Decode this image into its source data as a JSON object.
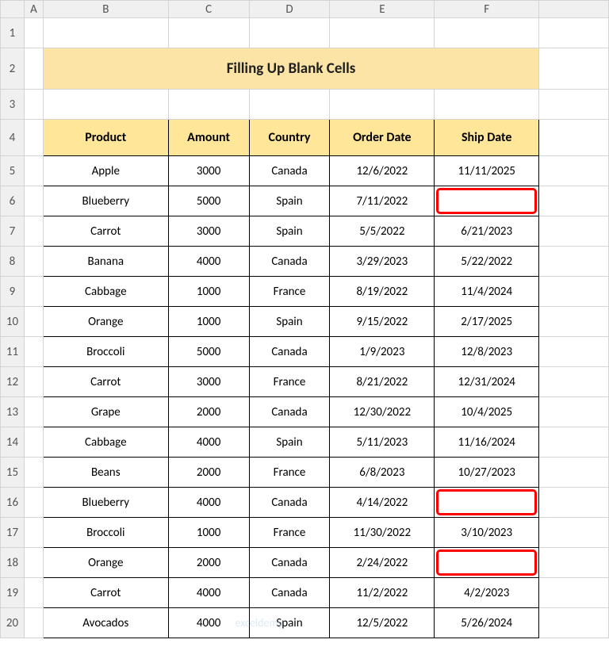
{
  "columns": [
    "A",
    "B",
    "C",
    "D",
    "E",
    "F"
  ],
  "rowCount": 20,
  "title": "Filling Up Blank Cells",
  "headers": [
    "Product",
    "Amount",
    "Country",
    "Order Date",
    "Ship Date"
  ],
  "rows": [
    {
      "product": "Apple",
      "amount": "3000",
      "country": "Canada",
      "order": "12/6/2022",
      "ship": "11/11/2025",
      "highlight": false
    },
    {
      "product": "Blueberry",
      "amount": "5000",
      "country": "Spain",
      "order": "7/11/2022",
      "ship": "",
      "highlight": true
    },
    {
      "product": "Carrot",
      "amount": "3000",
      "country": "Spain",
      "order": "5/5/2022",
      "ship": "6/21/2023",
      "highlight": false
    },
    {
      "product": "Banana",
      "amount": "4000",
      "country": "Canada",
      "order": "3/29/2023",
      "ship": "5/22/2022",
      "highlight": false
    },
    {
      "product": "Cabbage",
      "amount": "1000",
      "country": "France",
      "order": "8/19/2022",
      "ship": "11/4/2024",
      "highlight": false
    },
    {
      "product": "Orange",
      "amount": "1000",
      "country": "Spain",
      "order": "9/15/2022",
      "ship": "2/17/2025",
      "highlight": false
    },
    {
      "product": "Broccoli",
      "amount": "5000",
      "country": "Canada",
      "order": "1/9/2023",
      "ship": "12/8/2023",
      "highlight": false
    },
    {
      "product": "Carrot",
      "amount": "3000",
      "country": "France",
      "order": "8/21/2022",
      "ship": "12/31/2024",
      "highlight": false
    },
    {
      "product": "Grape",
      "amount": "2000",
      "country": "Canada",
      "order": "12/30/2022",
      "ship": "10/4/2025",
      "highlight": false
    },
    {
      "product": "Cabbage",
      "amount": "4000",
      "country": "Spain",
      "order": "5/11/2023",
      "ship": "11/16/2024",
      "highlight": false
    },
    {
      "product": "Beans",
      "amount": "2000",
      "country": "France",
      "order": "6/8/2023",
      "ship": "10/27/2023",
      "highlight": false
    },
    {
      "product": "Blueberry",
      "amount": "4000",
      "country": "Canada",
      "order": "4/14/2022",
      "ship": "",
      "highlight": true
    },
    {
      "product": "Broccoli",
      "amount": "1000",
      "country": "France",
      "order": "11/30/2022",
      "ship": "3/10/2023",
      "highlight": false
    },
    {
      "product": "Orange",
      "amount": "2000",
      "country": "Canada",
      "order": "2/24/2022",
      "ship": "",
      "highlight": true
    },
    {
      "product": "Carrot",
      "amount": "4000",
      "country": "Canada",
      "order": "11/2/2022",
      "ship": "4/2/2023",
      "highlight": false
    },
    {
      "product": "Avocados",
      "amount": "4000",
      "country": "Spain",
      "order": "12/5/2022",
      "ship": "5/26/2024",
      "highlight": false
    }
  ],
  "colors": {
    "title_bg": "#fce4a6",
    "header_bg": "#ffe699",
    "grid": "#d4d4d4",
    "border": "#000000",
    "highlight": "#ff0000",
    "underline": "#4472c4",
    "rowhead_bg": "#f0f0f0"
  },
  "watermark": "exceldemy"
}
